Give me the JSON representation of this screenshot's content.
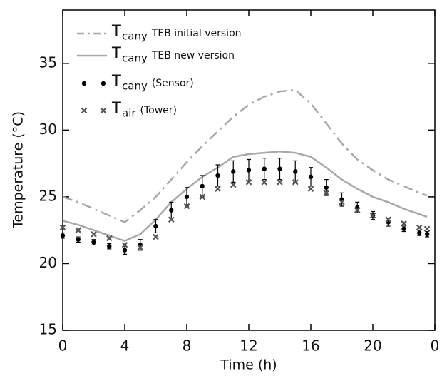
{
  "chart_data": {
    "type": "line",
    "xlabel": "Time (h)",
    "ylabel": "Temperature (°C)",
    "xlim": [
      0,
      24
    ],
    "ylim": [
      15,
      39
    ],
    "xticks": [
      0,
      4,
      8,
      12,
      16,
      20,
      {
        "value": 24,
        "label": "0"
      }
    ],
    "yticks": [
      15,
      20,
      25,
      30,
      35
    ],
    "x": [
      0,
      1,
      2,
      3,
      4,
      5,
      6,
      7,
      8,
      9,
      10,
      11,
      12,
      13,
      14,
      15,
      16,
      17,
      18,
      19,
      20,
      21,
      22,
      23,
      23.5
    ],
    "series": [
      {
        "symbol": "T",
        "subscript": "cany",
        "name": "TEB initial version",
        "style": "dashdot",
        "color": "#a8a8a8",
        "values": [
          25.0,
          24.6,
          24.1,
          23.6,
          23.1,
          24.0,
          25.0,
          26.3,
          27.6,
          28.8,
          29.9,
          31.0,
          31.9,
          32.5,
          32.9,
          33.0,
          32.0,
          30.5,
          29.0,
          27.8,
          27.0,
          26.3,
          25.8,
          25.3,
          25.1
        ]
      },
      {
        "symbol": "T",
        "subscript": "cany",
        "name": "TEB new version",
        "style": "solid",
        "color": "#a8a8a8",
        "values": [
          23.2,
          22.9,
          22.5,
          22.1,
          21.7,
          22.2,
          23.3,
          24.6,
          25.6,
          26.5,
          27.2,
          28.0,
          28.2,
          28.3,
          28.4,
          28.3,
          28.0,
          27.2,
          26.3,
          25.6,
          25.0,
          24.6,
          24.1,
          23.7,
          23.5
        ]
      },
      {
        "symbol": "T",
        "subscript": "cany",
        "name": "(Sensor)",
        "style": "dots",
        "color": "#000000",
        "values": [
          22.1,
          21.8,
          21.6,
          21.3,
          21.0,
          21.4,
          22.8,
          24.0,
          25.0,
          25.8,
          26.6,
          26.9,
          27.0,
          27.1,
          27.1,
          26.9,
          26.5,
          25.7,
          24.8,
          24.2,
          23.6,
          23.1,
          22.6,
          22.3,
          22.2
        ],
        "errors": [
          0.2,
          0.2,
          0.2,
          0.2,
          0.3,
          0.4,
          0.5,
          0.6,
          0.7,
          0.8,
          0.8,
          0.8,
          0.8,
          0.8,
          0.8,
          0.8,
          0.7,
          0.6,
          0.5,
          0.4,
          0.3,
          0.3,
          0.2,
          0.2,
          0.2
        ]
      },
      {
        "symbol": "T",
        "subscript": "air",
        "name": "(Tower)",
        "style": "crosses",
        "color": "#555555",
        "values": [
          22.7,
          22.5,
          22.2,
          21.9,
          21.4,
          21.2,
          22.0,
          23.3,
          24.3,
          25.0,
          25.6,
          25.9,
          26.1,
          26.1,
          26.1,
          26.1,
          25.6,
          25.3,
          24.6,
          24.0,
          23.6,
          23.3,
          23.0,
          22.7,
          22.6
        ]
      }
    ]
  }
}
